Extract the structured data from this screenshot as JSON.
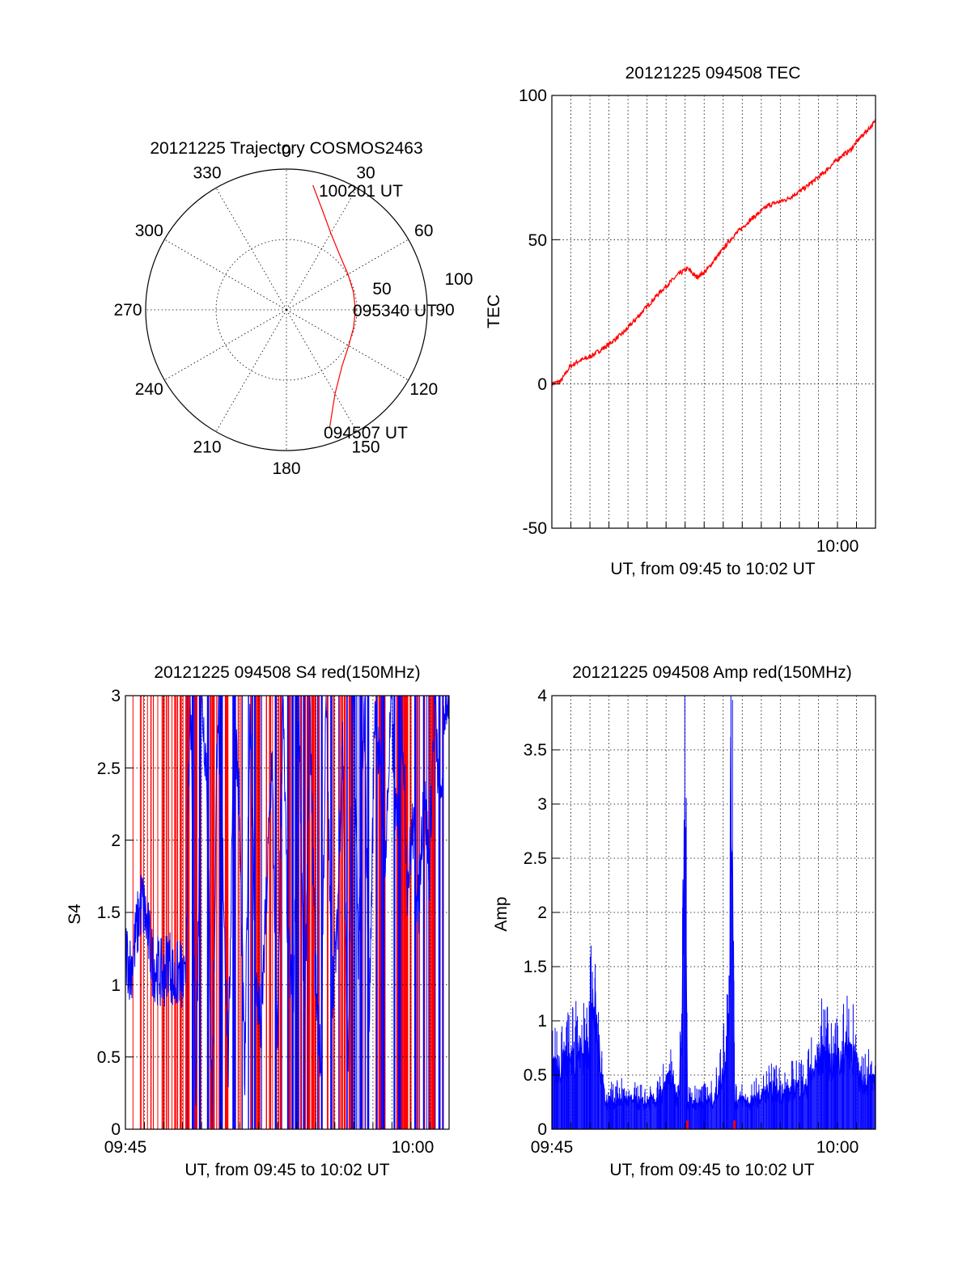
{
  "chart_data": [
    {
      "type": "line",
      "subtype": "polar",
      "title": "20121225 Trajectory COSMOS2463",
      "angle_labels": [
        "0",
        "30",
        "60",
        "90",
        "120",
        "150",
        "180",
        "210",
        "240",
        "270",
        "300",
        "330"
      ],
      "radius_labels": [
        "50",
        "100"
      ],
      "rlim": [
        0,
        100
      ],
      "grid": true,
      "annotations": [
        "100201 UT",
        "095340 UT",
        "094507 UT"
      ],
      "colors": {
        "trajectory": "#ff0000"
      },
      "series": [
        {
          "angle_deg": [
            12,
            20,
            30,
            45,
            60,
            75,
            90,
            105,
            120,
            135,
            150,
            160
          ],
          "radius": [
            90.5,
            75,
            63,
            54,
            50.5,
            49.2,
            49,
            49.3,
            51,
            56,
            69,
            89.5
          ]
        }
      ]
    },
    {
      "type": "line",
      "title": "20121225 094508 TEC",
      "xlabel": "UT, from 09:45 to 10:02 UT",
      "ylabel": "TEC",
      "xlim": [
        0,
        17.9
      ],
      "ylim": [
        -50,
        100
      ],
      "y_ticks": [
        "100",
        "50",
        "0",
        "-50"
      ],
      "x_ticks": [
        "10:00"
      ],
      "grid": true,
      "colors": {
        "line": "#ff0000"
      },
      "series": [
        {
          "x": [
            0,
            0.5,
            1,
            1.5,
            2,
            3,
            4,
            5,
            6,
            7,
            7.5,
            8,
            8.5,
            9,
            10,
            11,
            12,
            13,
            14,
            15,
            16,
            16.5,
            17,
            17.9
          ],
          "y": [
            0,
            1,
            6,
            8,
            9,
            13,
            18,
            25,
            32,
            38,
            40,
            37,
            39,
            43,
            51,
            57,
            62,
            64,
            68,
            73,
            79,
            81,
            85,
            91
          ]
        }
      ]
    },
    {
      "type": "line",
      "title": "20121225 094508 S4 red(150MHz)",
      "xlabel": "UT, from 09:45 to 10:02 UT",
      "ylabel": "S4",
      "xlim": [
        0,
        17.9
      ],
      "ylim": [
        0,
        3
      ],
      "y_ticks": [
        "3",
        "2.5",
        "2",
        "1.5",
        "1",
        "0.5",
        "0"
      ],
      "x_ticks": [
        "09:45",
        "10:00"
      ],
      "grid": true,
      "colors": {
        "red_channel": "#ff0000",
        "blue_channel": "#0000ff"
      },
      "series": [
        {
          "name": "",
          "x": [
            0,
            0.3,
            0.6,
            0.9,
            1.2,
            1.5,
            1.8,
            2.1,
            2.4,
            2.7,
            3,
            3.3,
            3.6,
            3.9,
            4.2,
            4.5,
            4.8,
            5.1,
            5.4,
            5.7,
            6,
            6.3,
            6.6,
            6.9,
            7.2,
            7.5,
            7.8,
            8.1,
            8.4,
            8.7,
            9,
            9.3,
            9.6,
            9.9,
            10.2,
            10.5,
            10.8,
            11.1,
            11.4,
            11.7,
            12,
            12.3,
            12.6,
            12.9,
            13.2,
            13.5,
            13.8,
            14.1,
            14.4,
            14.7,
            15,
            15.3,
            15.6,
            15.9,
            16.2,
            16.5,
            16.8,
            17.1,
            17.4,
            17.7
          ],
          "y": [
            1.25,
            1.1,
            1.35,
            1.6,
            1.4,
            1.15,
            1.1,
            1.05,
            1.2,
            1.0,
            1.1,
            0.95,
            3.0,
            0.2,
            3.0,
            2.5,
            0.1,
            3.0,
            1.8,
            0.4,
            3.0,
            2.2,
            0.3,
            3.0,
            1.0,
            0.7,
            1.6,
            2.6,
            0.5,
            3.0,
            1.2,
            0.9,
            3.0,
            0.6,
            2.9,
            1.1,
            0.4,
            3.0,
            0.95,
            1.3,
            2.8,
            0.35,
            3.0,
            1.2,
            2.9,
            0.8,
            3.0,
            2.4,
            1.9,
            3.0,
            2.0,
            2.9,
            1.7,
            2.1,
            1.5,
            2.4,
            1.8,
            3.0,
            2.1,
            3.0
          ]
        }
      ]
    },
    {
      "type": "line",
      "title": "20121225 094508 Amp red(150MHz)",
      "xlabel": "UT, from 09:45 to 10:02 UT",
      "ylabel": "Amp",
      "xlim": [
        0,
        17.9
      ],
      "ylim": [
        0,
        4
      ],
      "y_ticks": [
        "4",
        "3.5",
        "3",
        "2.5",
        "2",
        "1.5",
        "1",
        "0.5",
        "0"
      ],
      "x_ticks": [
        "09:45",
        "10:00"
      ],
      "grid": true,
      "colors": {
        "line": "#0000ff",
        "marker": "#ff0000"
      },
      "series": [
        {
          "x": [
            0,
            0.5,
            1,
            1.5,
            2,
            2.3,
            2.6,
            3,
            4,
            5,
            6,
            6.5,
            7,
            7.2,
            7.3,
            7.4,
            7.5,
            8,
            9,
            9.5,
            9.8,
            9.9,
            10,
            10.1,
            10.5,
            11,
            12,
            13,
            13.5,
            14,
            14.5,
            15,
            15.5,
            16,
            16.5,
            17,
            17.5,
            17.9
          ],
          "y": [
            0.65,
            0.75,
            0.8,
            0.9,
            0.9,
            1.5,
            0.9,
            0.3,
            0.35,
            0.3,
            0.35,
            0.6,
            0.3,
            1.2,
            3.58,
            3.2,
            0.3,
            0.3,
            0.35,
            0.7,
            1.2,
            3.9,
            3.4,
            0.3,
            0.35,
            0.3,
            0.45,
            0.4,
            0.5,
            0.45,
            0.7,
            0.9,
            0.75,
            0.8,
            1.0,
            0.6,
            0.55,
            0.5
          ]
        }
      ]
    }
  ]
}
